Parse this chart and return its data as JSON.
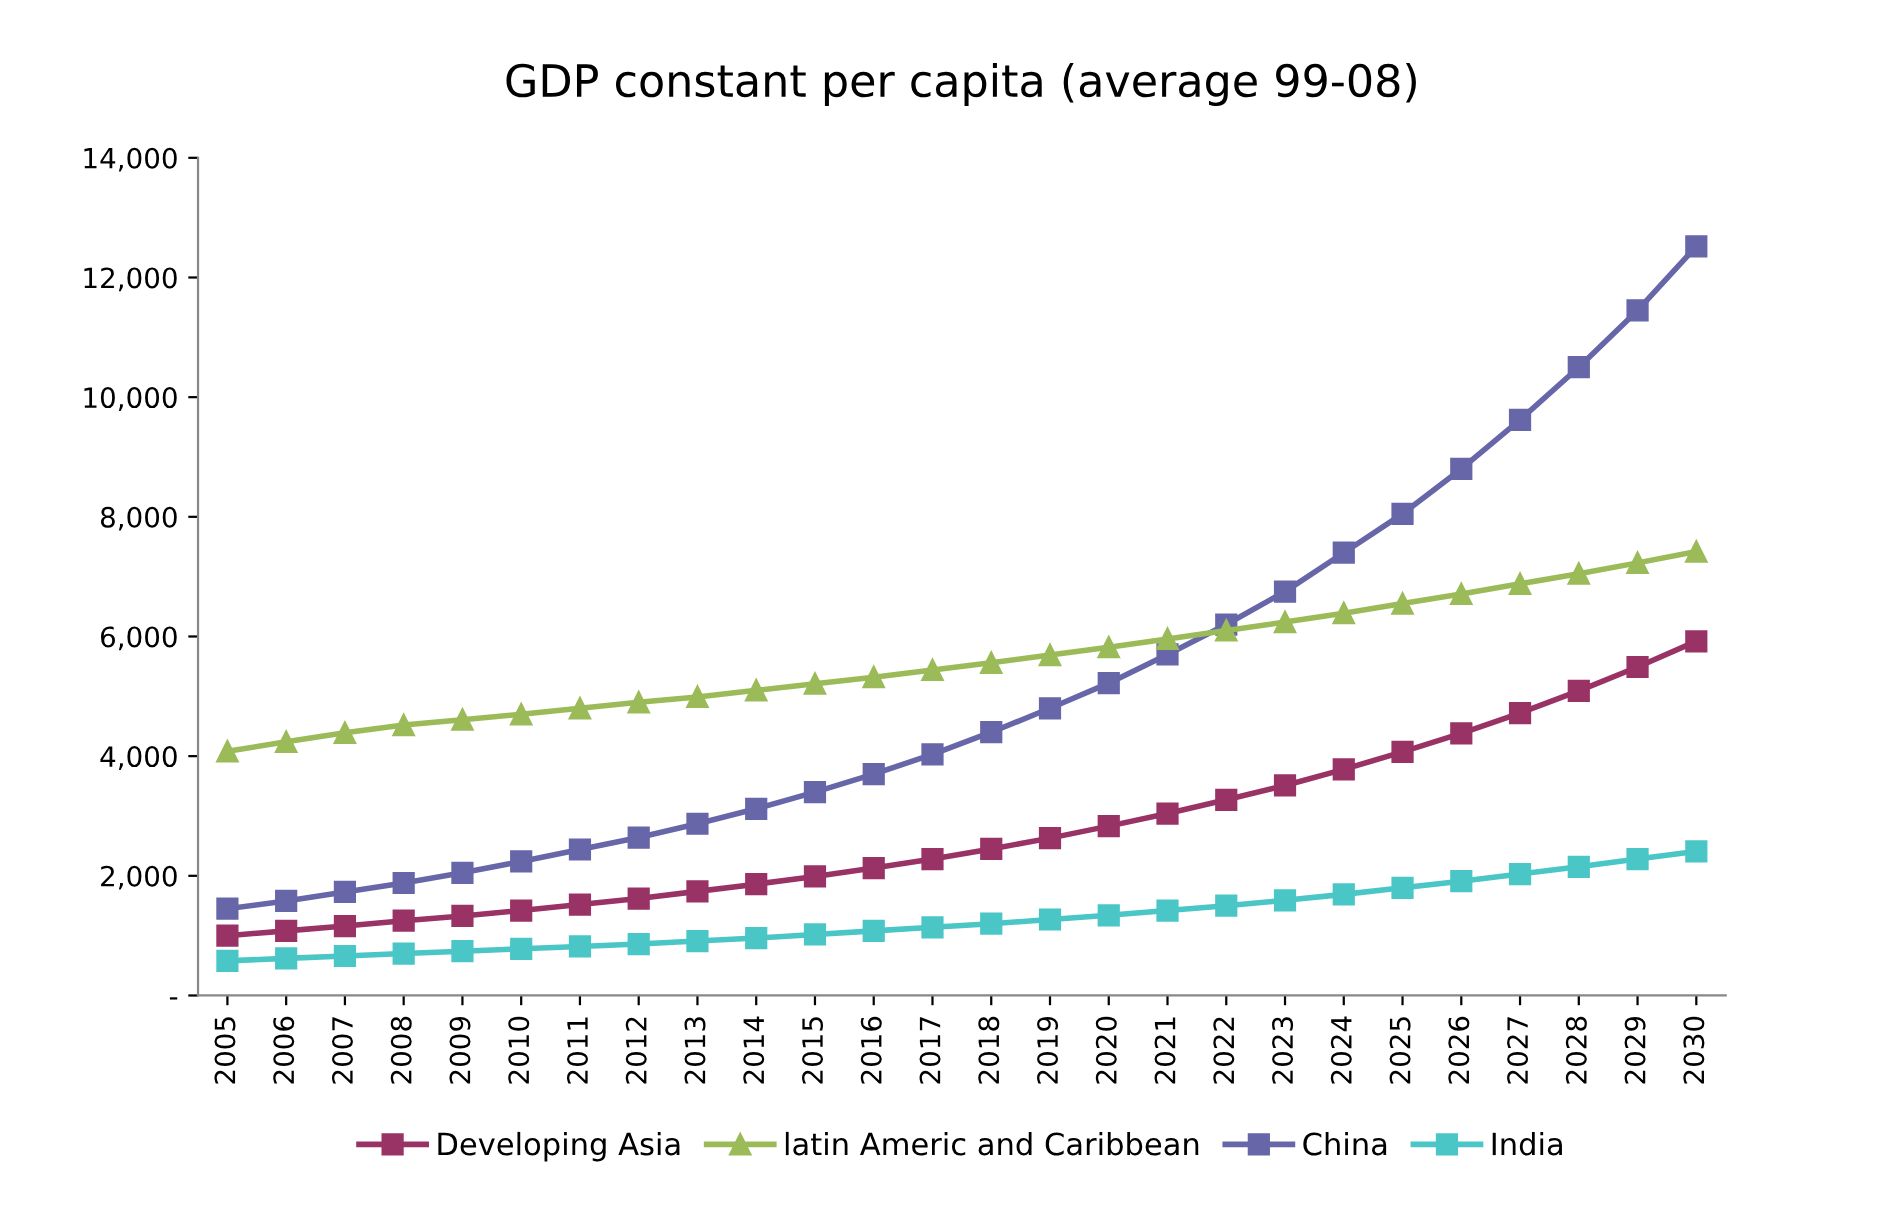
{
  "chart_data": {
    "type": "line",
    "title": "GDP constant per capita (average 99-08)",
    "categories": [
      "2005",
      "2006",
      "2007",
      "2008",
      "2009",
      "2010",
      "2011",
      "2012",
      "2013",
      "2014",
      "2015",
      "2016",
      "2017",
      "2018",
      "2019",
      "2020",
      "2021",
      "2022",
      "2023",
      "2024",
      "2025",
      "2026",
      "2027",
      "2028",
      "2029",
      "2030"
    ],
    "series": [
      {
        "name": "Developing Asia",
        "color": "#993366",
        "marker": "square",
        "values": [
          1000,
          1080,
          1160,
          1250,
          1330,
          1420,
          1520,
          1620,
          1740,
          1860,
          1990,
          2130,
          2280,
          2450,
          2630,
          2830,
          3040,
          3270,
          3510,
          3780,
          4070,
          4380,
          4720,
          5090,
          5490,
          5920
        ]
      },
      {
        "name": "latin Americ and Caribbean",
        "color": "#9bbb59",
        "marker": "triangle",
        "values": [
          4080,
          4240,
          4390,
          4520,
          4610,
          4700,
          4800,
          4900,
          4990,
          5100,
          5210,
          5320,
          5440,
          5560,
          5690,
          5820,
          5960,
          6100,
          6240,
          6390,
          6550,
          6710,
          6880,
          7050,
          7230,
          7420
        ]
      },
      {
        "name": "China",
        "color": "#6666a8",
        "marker": "square",
        "values": [
          1450,
          1580,
          1730,
          1880,
          2050,
          2240,
          2440,
          2640,
          2870,
          3120,
          3400,
          3700,
          4030,
          4400,
          4800,
          5220,
          5700,
          6200,
          6750,
          7400,
          8050,
          8800,
          9620,
          10500,
          11450,
          12520
        ]
      },
      {
        "name": "India",
        "color": "#4bc6c6",
        "marker": "square",
        "values": [
          580,
          620,
          660,
          700,
          740,
          780,
          820,
          860,
          910,
          960,
          1020,
          1080,
          1140,
          1200,
          1270,
          1340,
          1420,
          1500,
          1590,
          1690,
          1800,
          1910,
          2030,
          2150,
          2280,
          2410
        ]
      }
    ],
    "ylim": [
      0,
      14000
    ],
    "yticks": [
      {
        "value": 0,
        "label": "-"
      },
      {
        "value": 2000,
        "label": "2,000"
      },
      {
        "value": 4000,
        "label": "4,000"
      },
      {
        "value": 6000,
        "label": "6,000"
      },
      {
        "value": 8000,
        "label": "8,000"
      },
      {
        "value": 10000,
        "label": "10,000"
      },
      {
        "value": 12000,
        "label": "12,000"
      },
      {
        "value": 14000,
        "label": "14,000"
      }
    ],
    "grid": false,
    "legend": "bottom",
    "line_style": "solid"
  }
}
